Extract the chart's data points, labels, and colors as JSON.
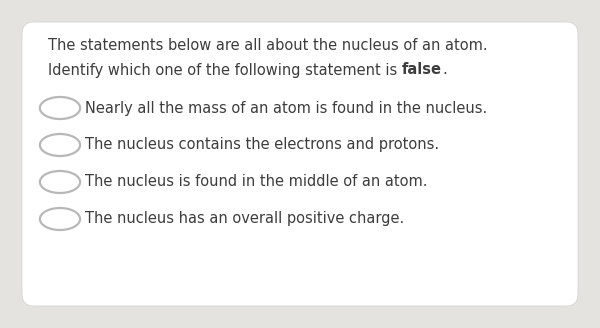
{
  "bg_outer": "#e5e3e0",
  "bg_card": "#ffffff",
  "title_line1": "The statements below are all about the nucleus of an atom.",
  "title_line2_normal": "Identify which one of the following statement is ",
  "title_line2_bold": "false",
  "title_line2_end": ".",
  "options": [
    "Nearly all the mass of an atom is found in the nucleus.",
    "The nucleus contains the electrons and protons.",
    "The nucleus is found in the middle of an atom.",
    "The nucleus has an overall positive charge."
  ],
  "text_color": "#3d3d3d",
  "circle_edge_color": "#b8b8b8",
  "circle_face_color": "#ffffff",
  "font_size_title": 10.5,
  "font_size_options": 10.5
}
